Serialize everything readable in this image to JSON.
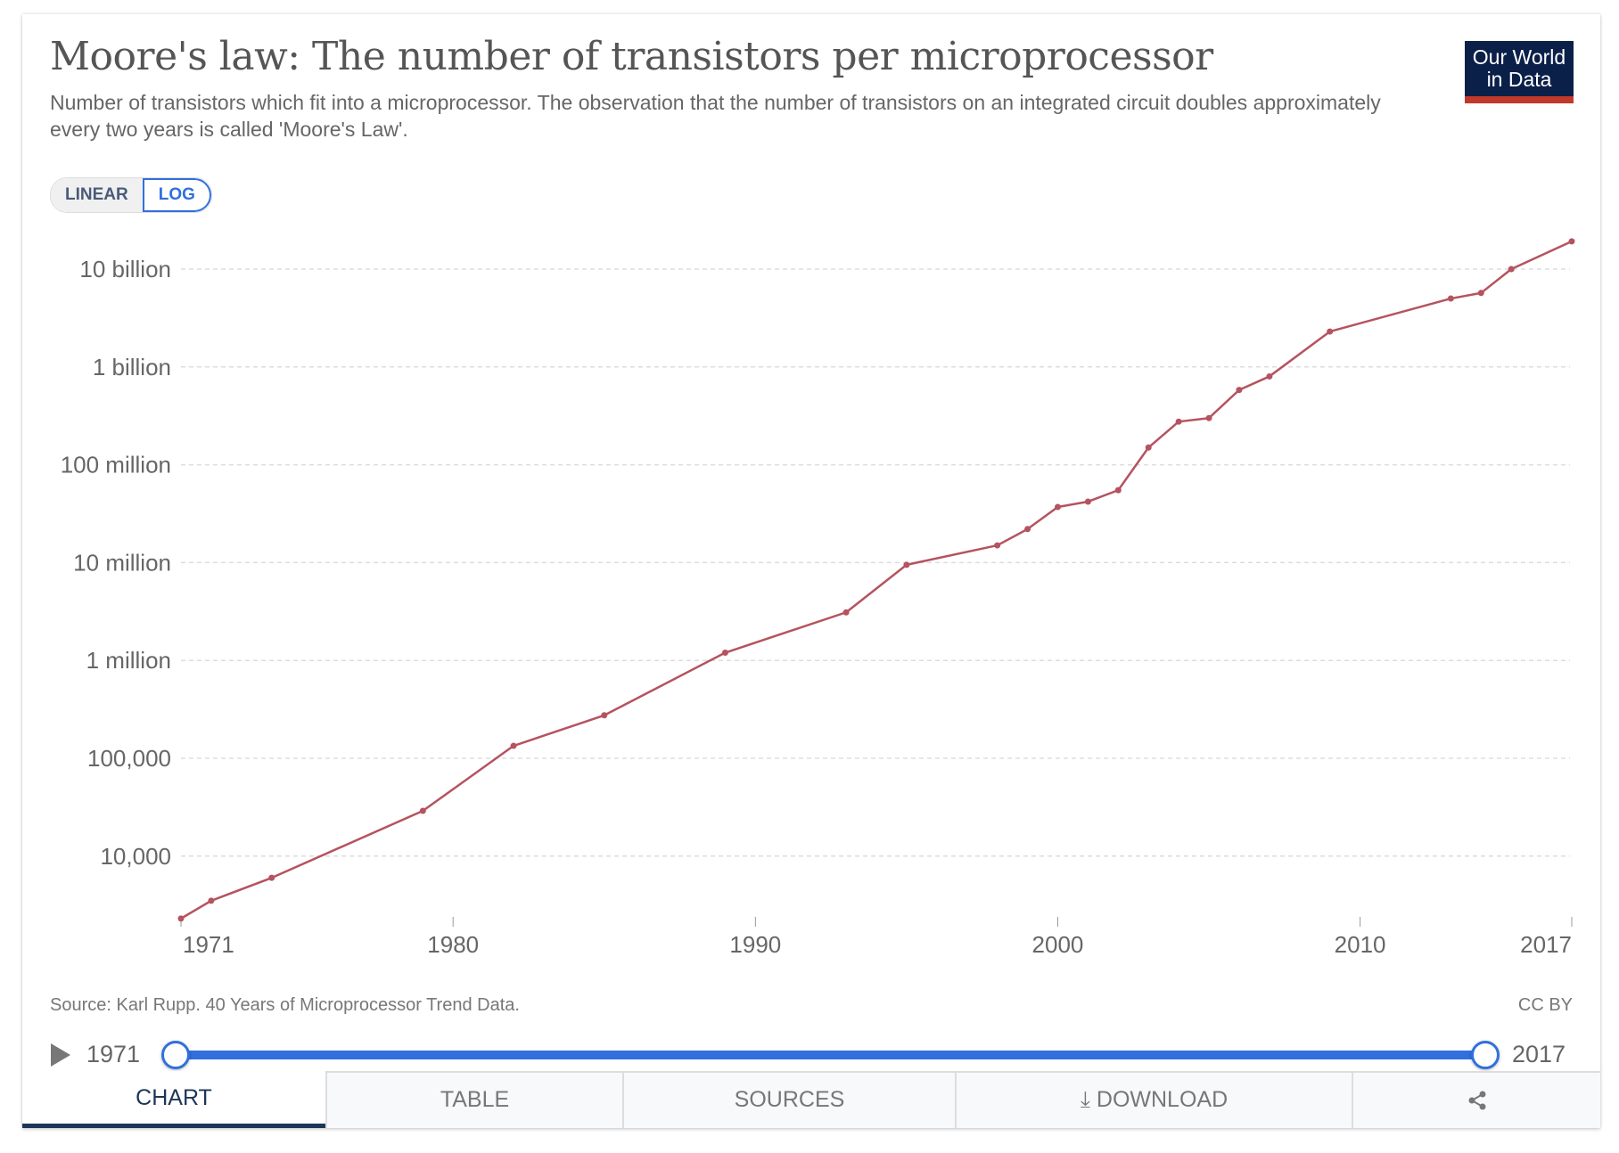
{
  "header": {
    "title": "Moore's law: The number of transistors per microprocessor",
    "subtitle": "Number of transistors which fit into a microprocessor. The observation that the number of transistors on an integrated circuit doubles approximately every two years is called 'Moore's Law'.",
    "logo_line1": "Our World",
    "logo_line2": "in Data"
  },
  "scale_toggle": {
    "linear": "LINEAR",
    "log": "LOG",
    "selected": "LOG"
  },
  "footer": {
    "source": "Source: Karl Rupp. 40 Years of Microprocessor Trend Data.",
    "license": "CC BY"
  },
  "timeline": {
    "start": "1971",
    "end": "2017"
  },
  "tabs": [
    {
      "label": "CHART"
    },
    {
      "label": "TABLE"
    },
    {
      "label": "SOURCES"
    },
    {
      "label": "DOWNLOAD"
    },
    {
      "label": ""
    }
  ],
  "colors": {
    "series": "#b5535f",
    "accent": "#3170dd",
    "brand": "#0b2049"
  },
  "chart_data": {
    "type": "line",
    "title": "Moore's law: The number of transistors per microprocessor",
    "yscale": "log",
    "ylim": [
      2000,
      20000000000
    ],
    "xlim": [
      1971,
      2017
    ],
    "y_ticks": [
      {
        "v": 10000,
        "label": "10,000"
      },
      {
        "v": 100000,
        "label": "100,000"
      },
      {
        "v": 1000000,
        "label": "1 million"
      },
      {
        "v": 10000000,
        "label": "10 million"
      },
      {
        "v": 100000000,
        "label": "100 million"
      },
      {
        "v": 1000000000,
        "label": "1 billion"
      },
      {
        "v": 10000000000,
        "label": "10 billion"
      }
    ],
    "x_ticks": [
      {
        "v": 1971,
        "label": "1971"
      },
      {
        "v": 1980,
        "label": "1980"
      },
      {
        "v": 1990,
        "label": "1990"
      },
      {
        "v": 2000,
        "label": "2000"
      },
      {
        "v": 2010,
        "label": "2010"
      },
      {
        "v": 2017,
        "label": "2017"
      }
    ],
    "grid": true,
    "series": [
      {
        "name": "Transistors per microprocessor",
        "x": [
          1971,
          1972,
          1974,
          1979,
          1982,
          1985,
          1989,
          1993,
          1995,
          1998,
          1999,
          2000,
          2001,
          2002,
          2003,
          2004,
          2005,
          2006,
          2007,
          2009,
          2013,
          2014,
          2015,
          2017
        ],
        "values": [
          2300,
          3500,
          6000,
          29000,
          134000,
          275000,
          1200000,
          3100000,
          9500000,
          15000000,
          22000000,
          37000000,
          42000000,
          55000000,
          150000000,
          276000000,
          300000000,
          582000000,
          800000000,
          2300000000,
          5000000000,
          5700000000,
          10000000000,
          19200000000
        ]
      }
    ]
  }
}
